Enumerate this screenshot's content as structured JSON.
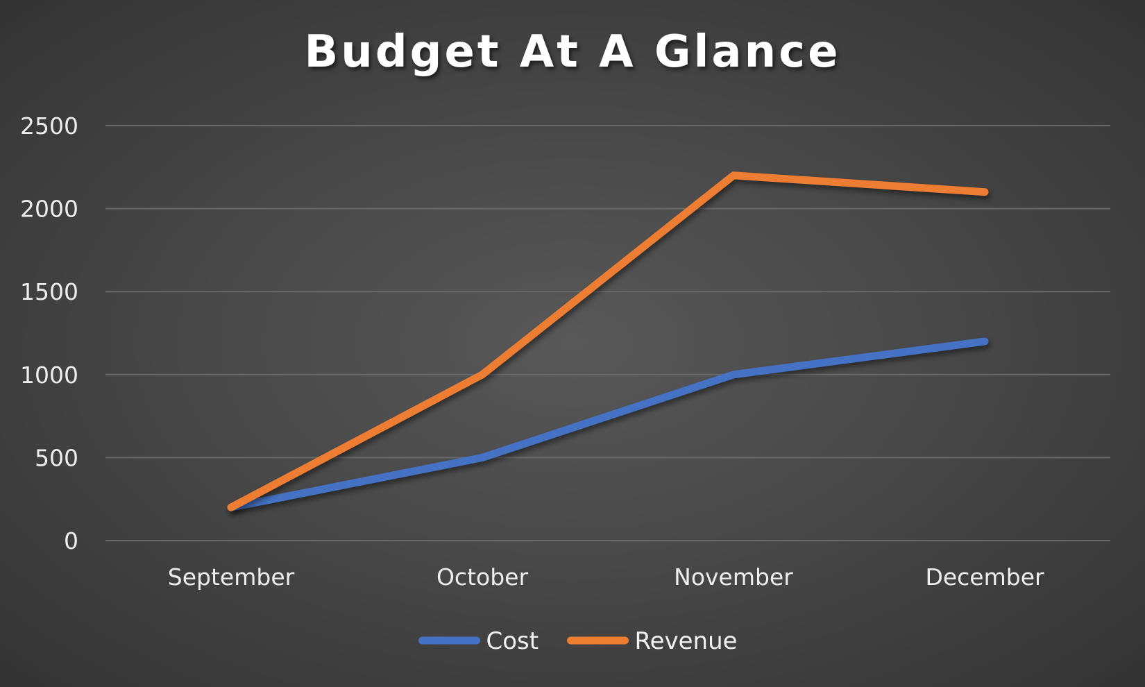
{
  "chart_data": {
    "type": "line",
    "title": "Budget At A Glance",
    "categories": [
      "September",
      "October",
      "November",
      "December"
    ],
    "series": [
      {
        "name": "Cost",
        "values": [
          200,
          500,
          1000,
          1200
        ],
        "color": "#4472C4"
      },
      {
        "name": "Revenue",
        "values": [
          200,
          1000,
          2200,
          2100
        ],
        "color": "#ED7D31"
      }
    ],
    "ylim": [
      0,
      2500
    ],
    "yticks": [
      0,
      500,
      1000,
      1500,
      2000,
      2500
    ],
    "grid": true,
    "legend": "bottom"
  }
}
